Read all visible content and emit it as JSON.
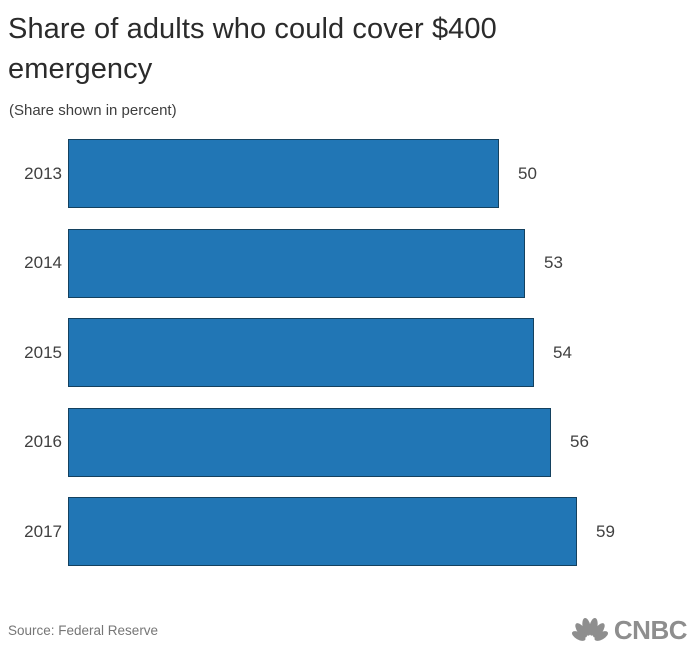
{
  "header": {
    "title": "Share of adults who could cover $400 emergency",
    "subtitle": "(Share shown in percent)"
  },
  "chart_data": {
    "type": "bar",
    "orientation": "horizontal",
    "title": "Share of adults who could cover $400 emergency",
    "subtitle": "(Share shown in percent)",
    "categories": [
      "2013",
      "2014",
      "2015",
      "2016",
      "2017"
    ],
    "values": [
      50,
      53,
      54,
      56,
      59
    ],
    "value_labels_shown": true,
    "xlim": [
      0,
      59
    ],
    "grid": false,
    "legend": false,
    "bar_color": "#2176b5",
    "bar_border_color": "#14415f"
  },
  "footer": {
    "source": "Source: Federal Reserve",
    "logo_text": "CNBC",
    "logo_icon": "cnbc-peacock-icon",
    "logo_color": "#8e8e8e"
  }
}
